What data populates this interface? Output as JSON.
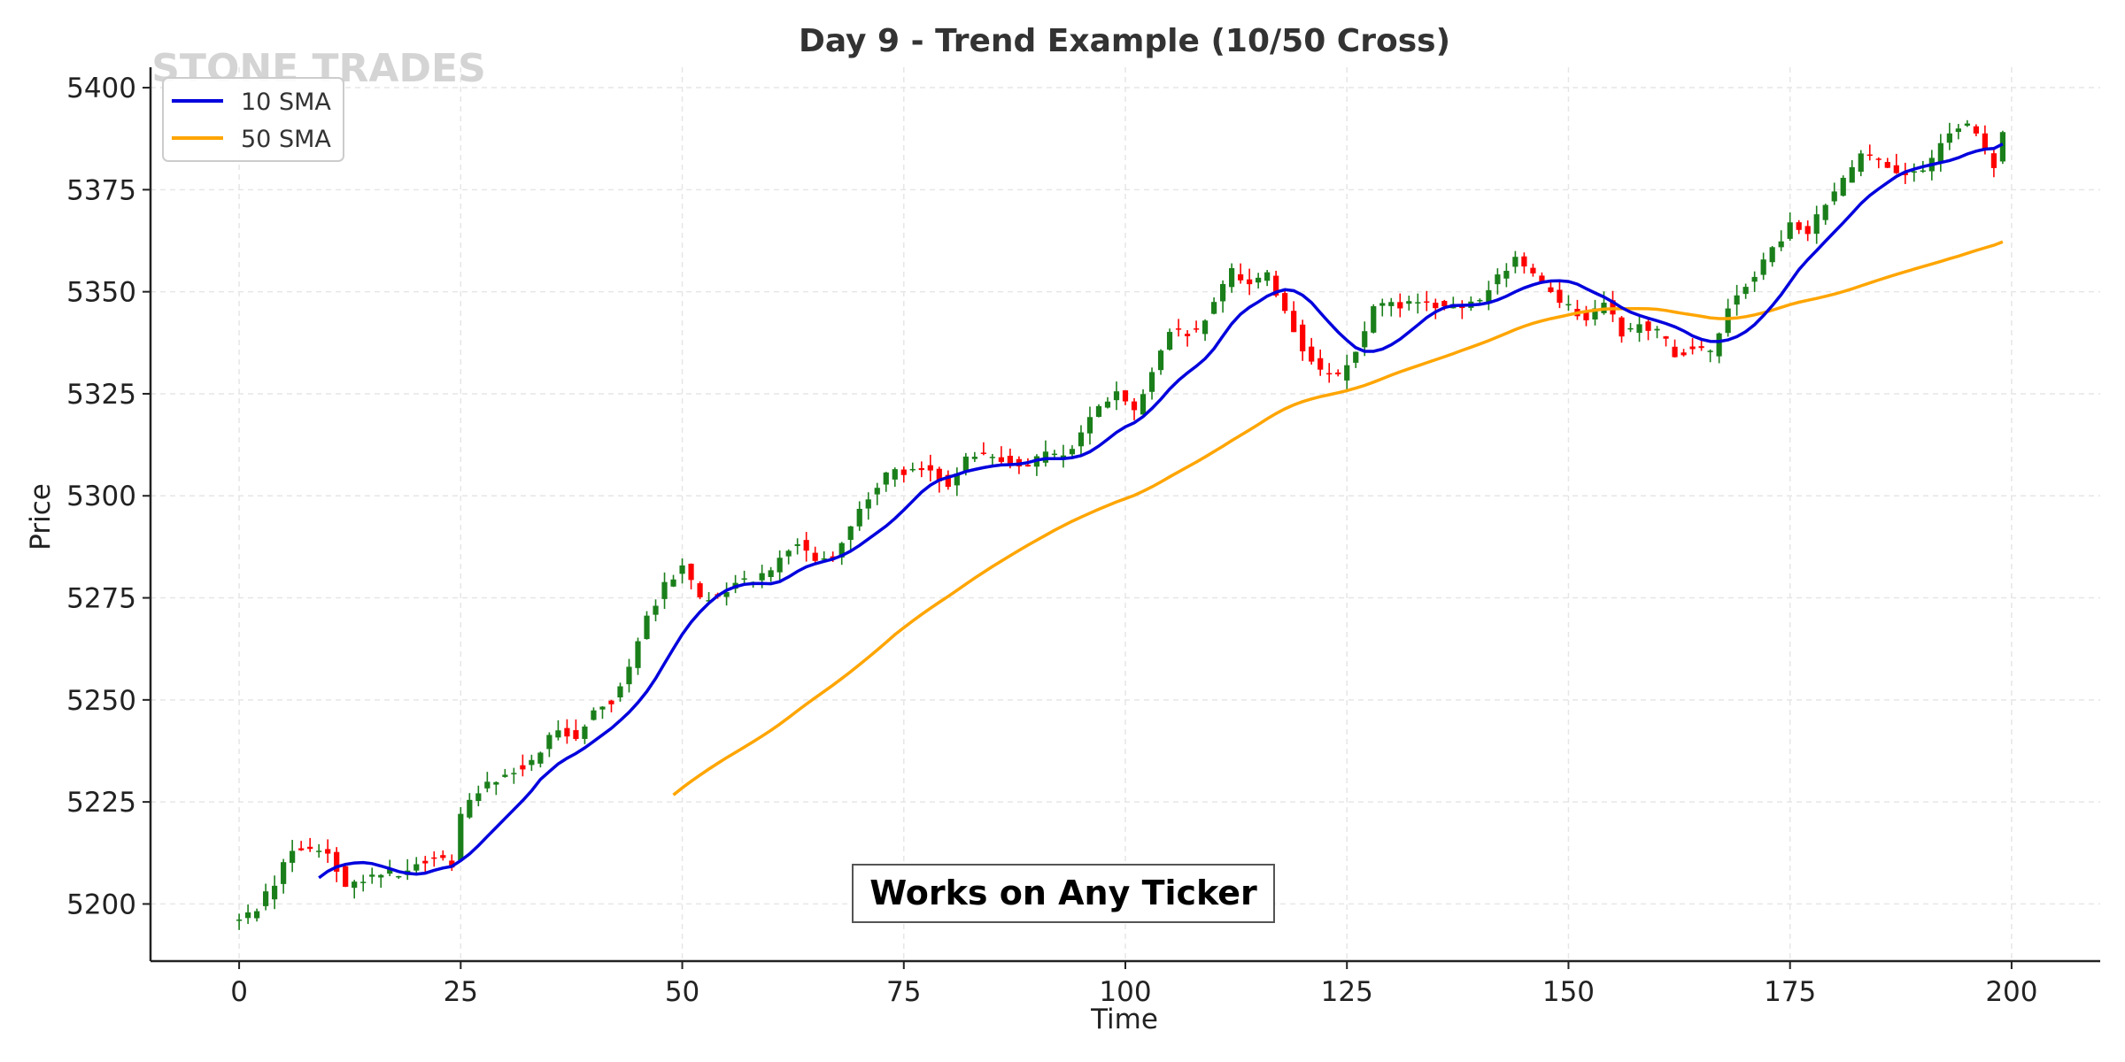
{
  "chart_data": {
    "type": "candlestick",
    "title": "Day 9 - Trend Example (10/50 Cross)",
    "xlabel": "Time",
    "ylabel": "Price",
    "xlim": [
      -10,
      210
    ],
    "ylim": [
      5186,
      5405
    ],
    "x_ticks": [
      0,
      25,
      50,
      75,
      100,
      125,
      150,
      175,
      200
    ],
    "y_ticks": [
      5200,
      5225,
      5250,
      5275,
      5300,
      5325,
      5350,
      5375,
      5400
    ],
    "grid": true,
    "legend_position": "top-left",
    "watermark": "STONE TRADES",
    "annotation": "Works on Any Ticker",
    "colors": {
      "up": "#1a7f1a",
      "down": "#ff0000",
      "sma10": "#0000dd",
      "sma50": "#ffa500",
      "grid": "#e6e6e6"
    },
    "close_anchors": [
      [
        0,
        5196
      ],
      [
        2,
        5199
      ],
      [
        4,
        5205
      ],
      [
        6,
        5214
      ],
      [
        8,
        5214
      ],
      [
        10,
        5212
      ],
      [
        12,
        5205
      ],
      [
        14,
        5206
      ],
      [
        16,
        5208
      ],
      [
        18,
        5207
      ],
      [
        20,
        5210
      ],
      [
        22,
        5212
      ],
      [
        24,
        5210
      ],
      [
        25,
        5221
      ],
      [
        27,
        5228
      ],
      [
        30,
        5232
      ],
      [
        33,
        5235
      ],
      [
        36,
        5243
      ],
      [
        38,
        5241
      ],
      [
        40,
        5248
      ],
      [
        42,
        5250
      ],
      [
        44,
        5258
      ],
      [
        46,
        5270
      ],
      [
        48,
        5278
      ],
      [
        50,
        5283
      ],
      [
        52,
        5275
      ],
      [
        54,
        5276
      ],
      [
        56,
        5279
      ],
      [
        58,
        5280
      ],
      [
        60,
        5282
      ],
      [
        63,
        5289
      ],
      [
        65,
        5285
      ],
      [
        67,
        5285
      ],
      [
        69,
        5292
      ],
      [
        71,
        5300
      ],
      [
        73,
        5305
      ],
      [
        75,
        5306
      ],
      [
        77,
        5307
      ],
      [
        80,
        5303
      ],
      [
        82,
        5310
      ],
      [
        85,
        5310
      ],
      [
        88,
        5307
      ],
      [
        91,
        5310
      ],
      [
        93,
        5310
      ],
      [
        95,
        5315
      ],
      [
        97,
        5322
      ],
      [
        99,
        5325
      ],
      [
        101,
        5320
      ],
      [
        103,
        5330
      ],
      [
        105,
        5340
      ],
      [
        108,
        5340
      ],
      [
        110,
        5347
      ],
      [
        112,
        5355
      ],
      [
        114,
        5352
      ],
      [
        116,
        5354
      ],
      [
        118,
        5346
      ],
      [
        120,
        5336
      ],
      [
        122,
        5330
      ],
      [
        124,
        5329
      ],
      [
        126,
        5336
      ],
      [
        128,
        5346
      ],
      [
        131,
        5347
      ],
      [
        134,
        5347
      ],
      [
        137,
        5346
      ],
      [
        140,
        5348
      ],
      [
        142,
        5354
      ],
      [
        144,
        5358
      ],
      [
        146,
        5354
      ],
      [
        148,
        5350
      ],
      [
        150,
        5346
      ],
      [
        152,
        5343
      ],
      [
        154,
        5348
      ],
      [
        156,
        5340
      ],
      [
        158,
        5342
      ],
      [
        160,
        5340
      ],
      [
        162,
        5335
      ],
      [
        164,
        5336
      ],
      [
        166,
        5335
      ],
      [
        168,
        5346
      ],
      [
        170,
        5352
      ],
      [
        173,
        5360
      ],
      [
        175,
        5366
      ],
      [
        177,
        5365
      ],
      [
        179,
        5372
      ],
      [
        181,
        5377
      ],
      [
        183,
        5384
      ],
      [
        185,
        5382
      ],
      [
        187,
        5380
      ],
      [
        189,
        5379
      ],
      [
        191,
        5382
      ],
      [
        193,
        5389
      ],
      [
        195,
        5391
      ],
      [
        197,
        5385
      ],
      [
        198,
        5381
      ],
      [
        199,
        5390
      ]
    ],
    "series": [
      {
        "name": "10 SMA",
        "start_x": 9,
        "end_x": 199
      },
      {
        "name": "50 SMA",
        "start_x": 49,
        "end_x": 199
      }
    ]
  }
}
